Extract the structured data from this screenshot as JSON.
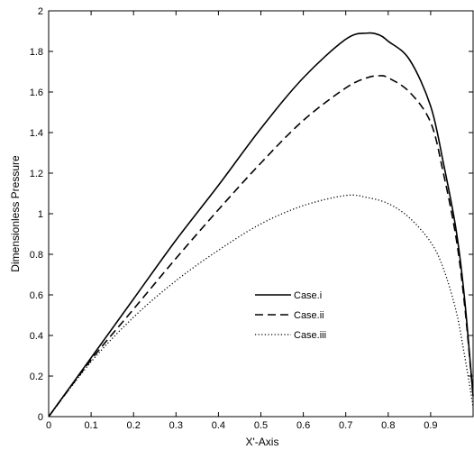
{
  "chart_data": {
    "type": "line",
    "title": "",
    "xlabel": "X'-Axis",
    "ylabel": "Dimensionless Pressure",
    "xlim": [
      0,
      1
    ],
    "ylim": [
      0,
      2
    ],
    "xticks": [
      0,
      0.1,
      0.2,
      0.3,
      0.4,
      0.5,
      0.6,
      0.7,
      0.8,
      0.9
    ],
    "xtick_labels": [
      "0",
      "0.1",
      "0.2",
      "0.3",
      "0.4",
      "0.5",
      "0.6",
      "0.7",
      "0.8",
      "0.9"
    ],
    "yticks": [
      0,
      0.2,
      0.4,
      0.6,
      0.8,
      1,
      1.2,
      1.4,
      1.6,
      1.8,
      2
    ],
    "ytick_labels": [
      "0",
      "0.2",
      "0.4",
      "0.6",
      "0.8",
      "1",
      "1.2",
      "1.4",
      "1.6",
      "1.8",
      "2"
    ],
    "grid": false,
    "legend_position": "center-right",
    "series": [
      {
        "name": "Case.i",
        "style": "solid",
        "color": "#000000",
        "x": [
          0,
          0.1,
          0.2,
          0.3,
          0.4,
          0.5,
          0.6,
          0.7,
          0.75,
          0.78,
          0.8,
          0.85,
          0.9,
          0.93,
          0.96,
          0.98,
          1.0
        ],
        "y": [
          0,
          0.29,
          0.58,
          0.87,
          1.14,
          1.42,
          1.67,
          1.86,
          1.89,
          1.88,
          1.85,
          1.76,
          1.53,
          1.25,
          0.92,
          0.58,
          0.1
        ]
      },
      {
        "name": "Case.ii",
        "style": "dashed",
        "color": "#000000",
        "x": [
          0,
          0.1,
          0.2,
          0.3,
          0.4,
          0.5,
          0.6,
          0.7,
          0.75,
          0.78,
          0.8,
          0.85,
          0.9,
          0.93,
          0.96,
          0.98,
          1.0
        ],
        "y": [
          0,
          0.28,
          0.53,
          0.78,
          1.02,
          1.25,
          1.46,
          1.62,
          1.67,
          1.68,
          1.67,
          1.6,
          1.45,
          1.2,
          0.88,
          0.55,
          0.1
        ]
      },
      {
        "name": "Case.iii",
        "style": "dotted",
        "color": "#000000",
        "x": [
          0,
          0.1,
          0.2,
          0.3,
          0.4,
          0.5,
          0.6,
          0.7,
          0.75,
          0.8,
          0.85,
          0.9,
          0.93,
          0.96,
          0.98,
          1.0
        ],
        "y": [
          0,
          0.27,
          0.49,
          0.67,
          0.82,
          0.95,
          1.04,
          1.09,
          1.08,
          1.05,
          0.98,
          0.86,
          0.73,
          0.52,
          0.3,
          0.05
        ]
      }
    ]
  }
}
